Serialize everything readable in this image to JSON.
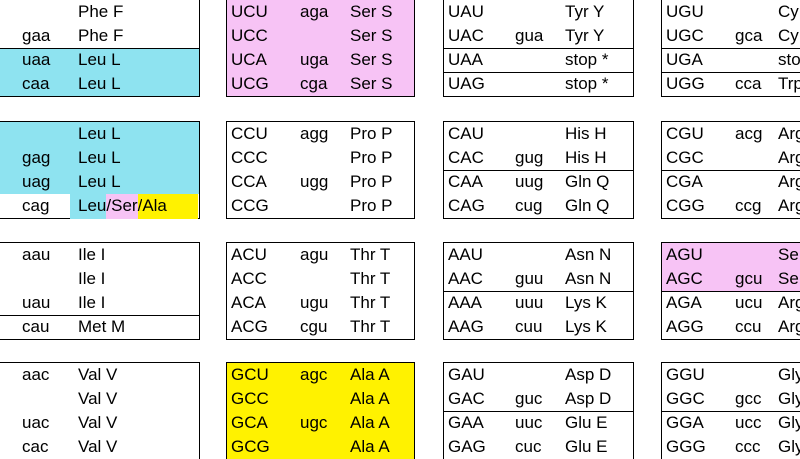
{
  "columns": [
    {
      "blocks": [
        {
          "rows": [
            {
              "amino_acid": "Phe F"
            },
            {
              "anticodon": "gaa",
              "amino_acid": "Phe F"
            },
            {
              "anticodon": "uaa",
              "amino_acid": "Leu L"
            },
            {
              "anticodon": "caa",
              "amino_acid": "Leu L"
            }
          ]
        },
        {
          "rows": [
            {
              "amino_acid": "Leu L"
            },
            {
              "anticodon": "gag",
              "amino_acid": "Leu L"
            },
            {
              "anticodon": "uag",
              "amino_acid": "Leu L"
            },
            {
              "anticodon": "cag",
              "amino_acid_parts": [
                "Leu",
                "/",
                "Ser",
                "/",
                "Ala"
              ]
            }
          ]
        },
        {
          "rows": [
            {
              "anticodon": "aau",
              "amino_acid": "Ile I"
            },
            {
              "amino_acid": "Ile I"
            },
            {
              "anticodon": "uau",
              "amino_acid": "Ile I"
            },
            {
              "anticodon": "cau",
              "amino_acid": "Met M"
            }
          ]
        },
        {
          "rows": [
            {
              "anticodon": "aac",
              "amino_acid": "Val V"
            },
            {
              "amino_acid": "Val V"
            },
            {
              "anticodon": "uac",
              "amino_acid": "Val V"
            },
            {
              "anticodon": "cac",
              "amino_acid": "Val V"
            }
          ]
        }
      ]
    },
    {
      "blocks": [
        {
          "rows": [
            {
              "codon": "UCU",
              "anticodon": "aga",
              "amino_acid": "Ser S"
            },
            {
              "codon": "UCC",
              "amino_acid": "Ser S"
            },
            {
              "codon": "UCA",
              "anticodon": "uga",
              "amino_acid": "Ser S"
            },
            {
              "codon": "UCG",
              "anticodon": "cga",
              "amino_acid": "Ser S"
            }
          ]
        },
        {
          "rows": [
            {
              "codon": "CCU",
              "anticodon": "agg",
              "amino_acid": "Pro P"
            },
            {
              "codon": "CCC",
              "amino_acid": "Pro P"
            },
            {
              "codon": "CCA",
              "anticodon": "ugg",
              "amino_acid": "Pro P"
            },
            {
              "codon": "CCG",
              "amino_acid": "Pro P"
            }
          ]
        },
        {
          "rows": [
            {
              "codon": "ACU",
              "anticodon": "agu",
              "amino_acid": "Thr T"
            },
            {
              "codon": "ACC",
              "amino_acid": "Thr T"
            },
            {
              "codon": "ACA",
              "anticodon": "ugu",
              "amino_acid": "Thr T"
            },
            {
              "codon": "ACG",
              "anticodon": "cgu",
              "amino_acid": "Thr T"
            }
          ]
        },
        {
          "rows": [
            {
              "codon": "GCU",
              "anticodon": "agc",
              "amino_acid": "Ala A"
            },
            {
              "codon": "GCC",
              "amino_acid": "Ala A"
            },
            {
              "codon": "GCA",
              "anticodon": "ugc",
              "amino_acid": "Ala A"
            },
            {
              "codon": "GCG",
              "amino_acid": "Ala A"
            }
          ]
        }
      ]
    },
    {
      "blocks": [
        {
          "rows": [
            {
              "codon": "UAU",
              "amino_acid": "Tyr Y"
            },
            {
              "codon": "UAC",
              "anticodon": "gua",
              "amino_acid": "Tyr Y"
            },
            {
              "codon": "UAA",
              "amino_acid": "stop *"
            },
            {
              "codon": "UAG",
              "amino_acid": "stop *"
            }
          ]
        },
        {
          "rows": [
            {
              "codon": "CAU",
              "amino_acid": "His H"
            },
            {
              "codon": "CAC",
              "anticodon": "gug",
              "amino_acid": "His H"
            },
            {
              "codon": "CAA",
              "anticodon": "uug",
              "amino_acid": "Gln Q"
            },
            {
              "codon": "CAG",
              "anticodon": "cug",
              "amino_acid": "Gln Q"
            }
          ]
        },
        {
          "rows": [
            {
              "codon": "AAU",
              "amino_acid": "Asn N"
            },
            {
              "codon": "AAC",
              "anticodon": "guu",
              "amino_acid": "Asn N"
            },
            {
              "codon": "AAA",
              "anticodon": "uuu",
              "amino_acid": "Lys K"
            },
            {
              "codon": "AAG",
              "anticodon": "cuu",
              "amino_acid": "Lys K"
            }
          ]
        },
        {
          "rows": [
            {
              "codon": "GAU",
              "amino_acid": "Asp D"
            },
            {
              "codon": "GAC",
              "anticodon": "guc",
              "amino_acid": "Asp D"
            },
            {
              "codon": "GAA",
              "anticodon": "uuc",
              "amino_acid": "Glu E"
            },
            {
              "codon": "GAG",
              "anticodon": "cuc",
              "amino_acid": "Glu E"
            }
          ]
        }
      ]
    },
    {
      "blocks": [
        {
          "rows": [
            {
              "codon": "UGU",
              "amino_acid": "Cy"
            },
            {
              "codon": "UGC",
              "anticodon": "gca",
              "amino_acid": "Cy"
            },
            {
              "codon": "UGA",
              "amino_acid": "sto"
            },
            {
              "codon": "UGG",
              "anticodon": "cca",
              "amino_acid": "Trp"
            }
          ]
        },
        {
          "rows": [
            {
              "codon": "CGU",
              "anticodon": "acg",
              "amino_acid": "Arg"
            },
            {
              "codon": "CGC",
              "amino_acid": "Arg"
            },
            {
              "codon": "CGA",
              "amino_acid": "Arg"
            },
            {
              "codon": "CGG",
              "anticodon": "ccg",
              "amino_acid": "Arg"
            }
          ]
        },
        {
          "rows": [
            {
              "codon": "AGU",
              "amino_acid": "Se"
            },
            {
              "codon": "AGC",
              "anticodon": "gcu",
              "amino_acid": "Se"
            },
            {
              "codon": "AGA",
              "anticodon": "ucu",
              "amino_acid": "Arg"
            },
            {
              "codon": "AGG",
              "anticodon": "ccu",
              "amino_acid": "Arg"
            }
          ]
        },
        {
          "rows": [
            {
              "codon": "GGU",
              "amino_acid": "Gly"
            },
            {
              "codon": "GGC",
              "anticodon": "gcc",
              "amino_acid": "Gly"
            },
            {
              "codon": "GGA",
              "anticodon": "ucc",
              "amino_acid": "Gly"
            },
            {
              "codon": "GGG",
              "anticodon": "ccc",
              "amino_acid": "Gly"
            }
          ]
        }
      ]
    }
  ]
}
